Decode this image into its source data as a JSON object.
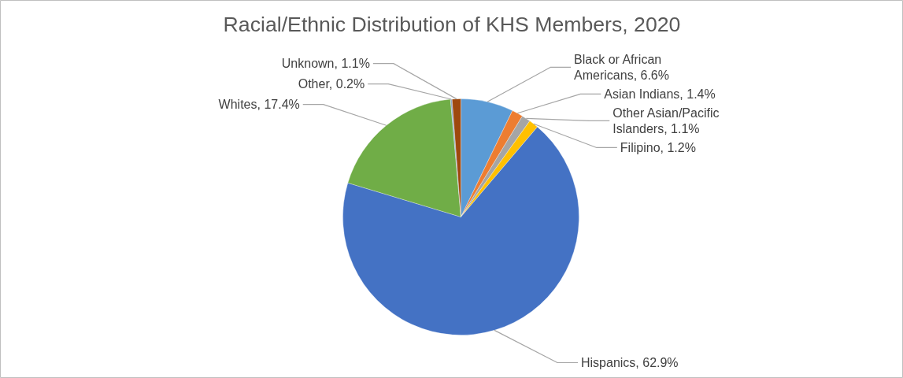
{
  "chart_data": {
    "type": "pie",
    "title": "Racial/Ethnic Distribution of KHS Members, 2020",
    "categories": [
      "Black or African Americans",
      "Asian Indians",
      "Other Asian/Pacific Islanders",
      "Filipino",
      "Hispanics",
      "Whites",
      "Other",
      "Unknown"
    ],
    "values": [
      6.6,
      1.4,
      1.1,
      1.2,
      62.9,
      17.4,
      0.2,
      1.1
    ],
    "value_labels": [
      "6.6%",
      "1.4%",
      "1.1%",
      "1.2%",
      "62.9%",
      "17.4%",
      "0.2%",
      "1.1%"
    ],
    "colors": [
      "#5b9bd5",
      "#ed7d31",
      "#a5a5a5",
      "#ffc000",
      "#4472c4",
      "#70ad47",
      "#8fa8c8",
      "#9e480e"
    ]
  }
}
